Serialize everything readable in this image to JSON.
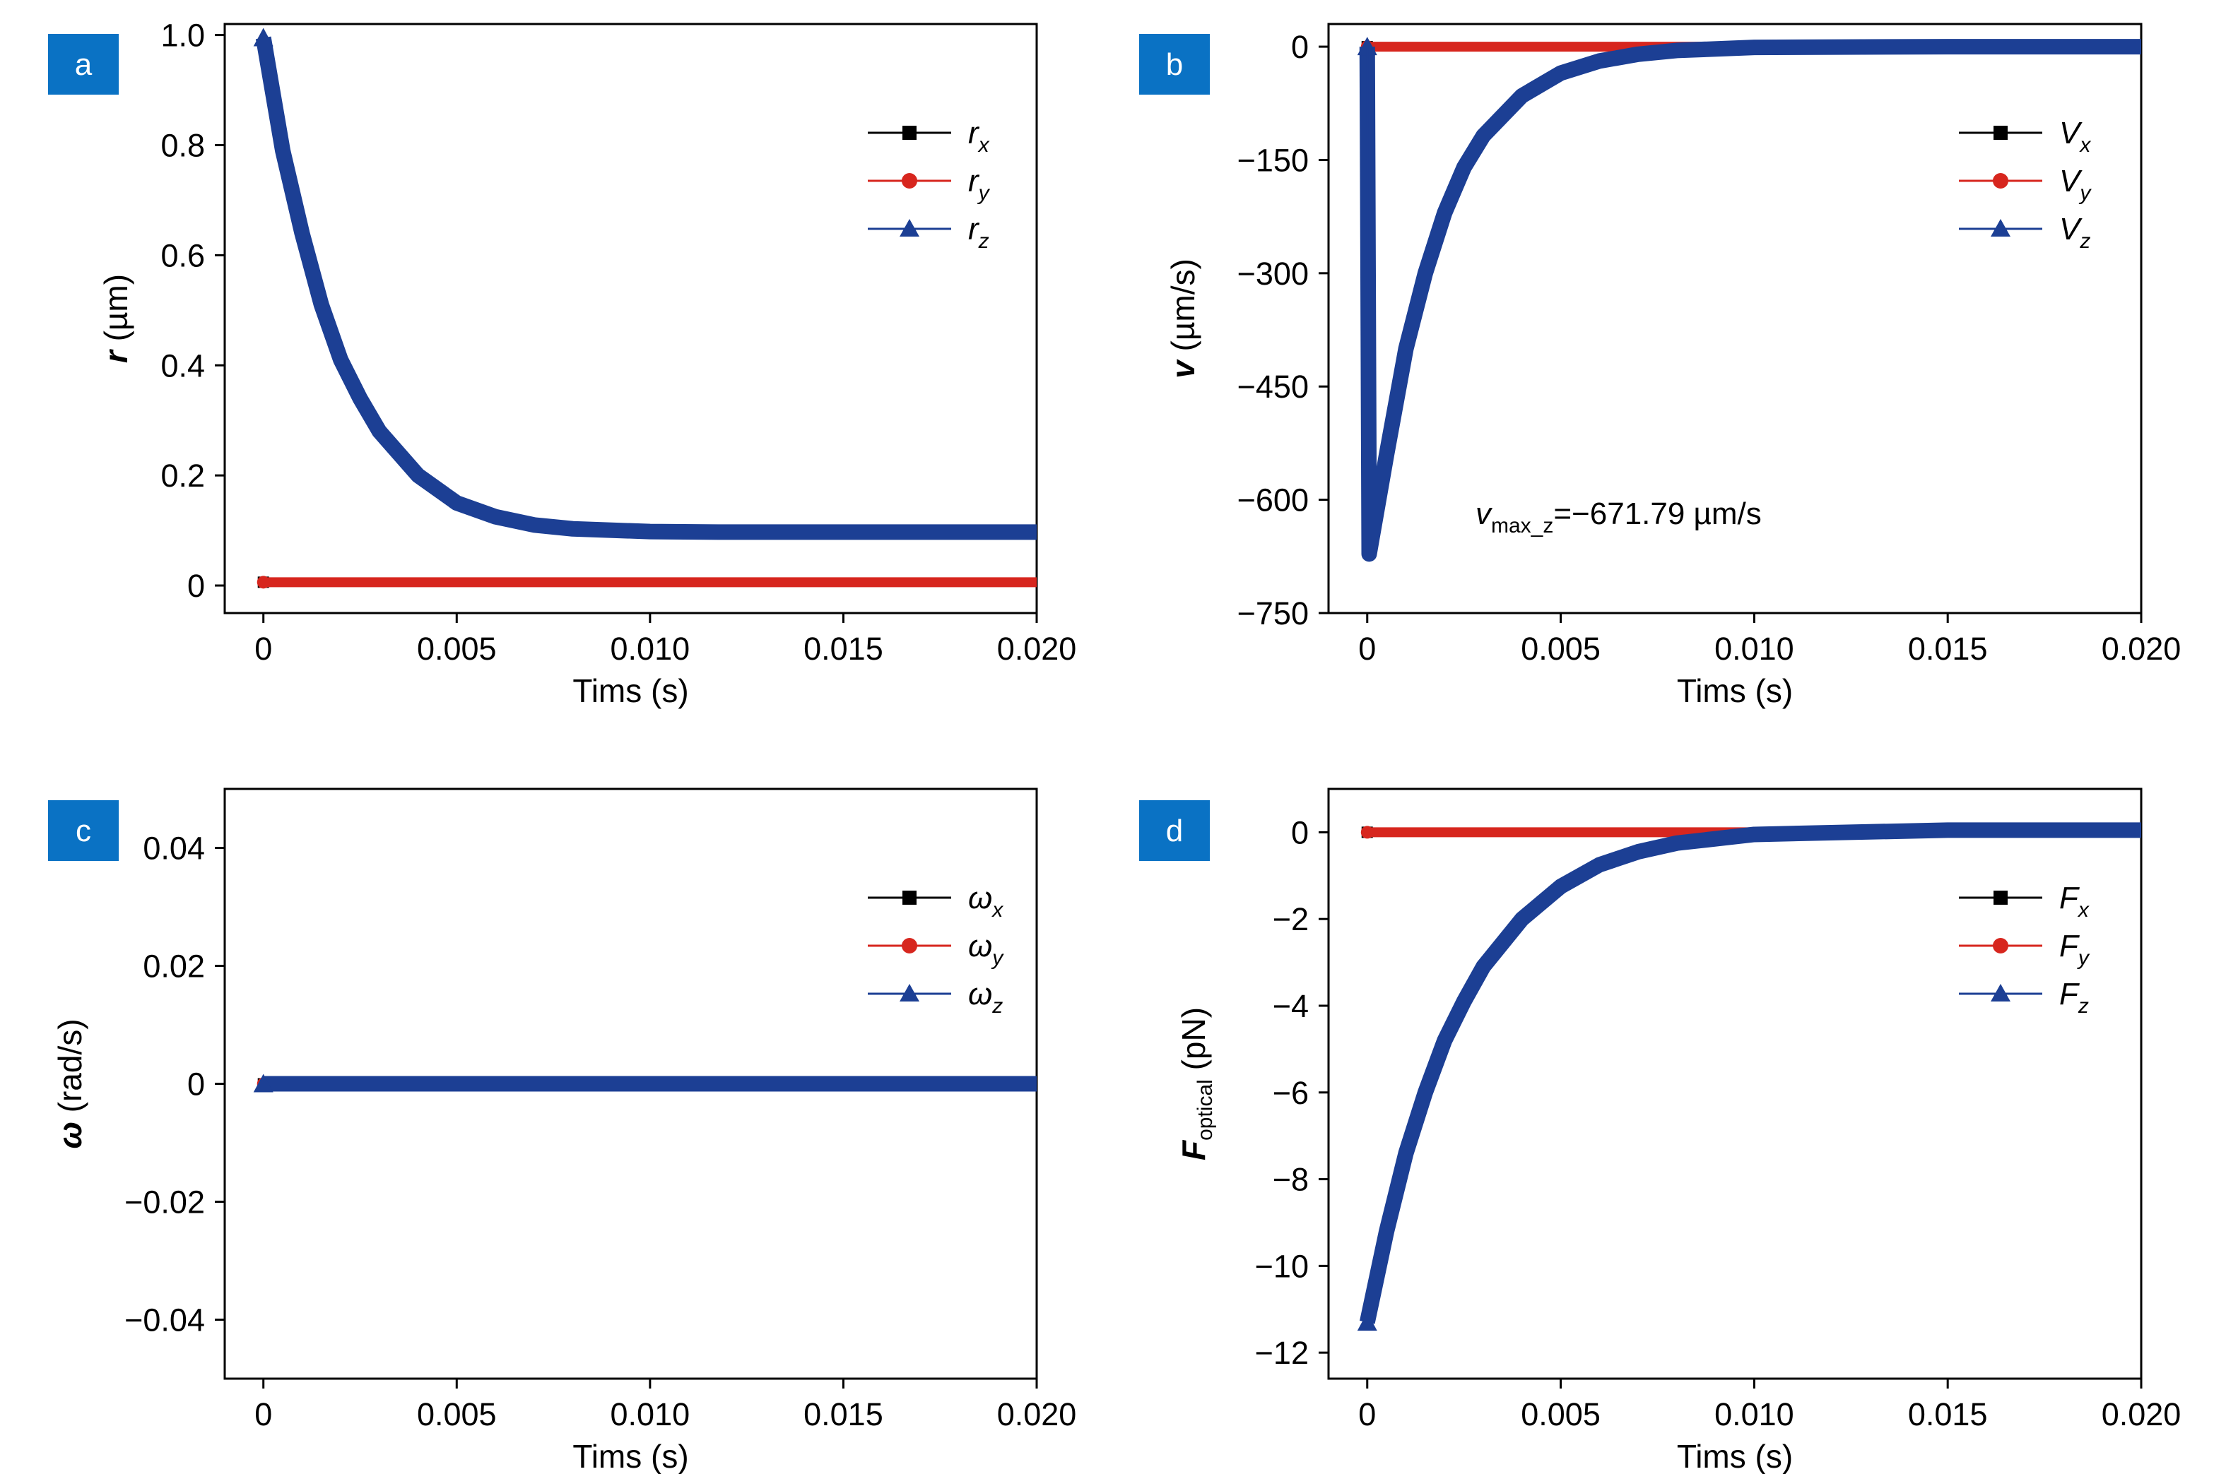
{
  "chart_data": [
    {
      "panel": "a",
      "type": "line",
      "xlabel": "Tims (s)",
      "ylabel": {
        "symbol": "r",
        "unit": " (µm)"
      },
      "xlim": [
        -0.001,
        0.02
      ],
      "ylim": [
        -0.05,
        1.02
      ],
      "xticks": [
        0,
        0.005,
        0.01,
        0.015,
        0.02
      ],
      "xtick_labels": [
        "0",
        "0.005",
        "0.010",
        "0.015",
        "0.020"
      ],
      "yticks": [
        0,
        0.2,
        0.4,
        0.6,
        0.8,
        1.0
      ],
      "ytick_labels": [
        "0",
        "0.2",
        "0.4",
        "0.6",
        "0.8",
        "1.0"
      ],
      "legend": "top-right",
      "series": [
        {
          "name": "rx",
          "label": "r",
          "sub": "x",
          "color": "#000000",
          "marker": "square",
          "x": [
            0,
            0.02
          ],
          "y": [
            0.006,
            0.006
          ]
        },
        {
          "name": "ry",
          "label": "r",
          "sub": "y",
          "color": "#d7261e",
          "marker": "circle",
          "x": [
            0,
            0.02
          ],
          "y": [
            0.006,
            0.006
          ]
        },
        {
          "name": "rz",
          "label": "r",
          "sub": "z",
          "color": "#1c3f94",
          "marker": "triangle",
          "x": [
            0,
            0.0005,
            0.001,
            0.0015,
            0.002,
            0.0025,
            0.003,
            0.004,
            0.005,
            0.006,
            0.007,
            0.008,
            0.01,
            0.012,
            0.015,
            0.02
          ],
          "y": [
            0.995,
            0.79,
            0.64,
            0.51,
            0.41,
            0.34,
            0.28,
            0.2,
            0.15,
            0.125,
            0.11,
            0.103,
            0.098,
            0.097,
            0.097,
            0.097
          ]
        }
      ]
    },
    {
      "panel": "b",
      "type": "line",
      "xlabel": "Tims (s)",
      "ylabel": {
        "symbol": "v",
        "unit": " (µm/s)"
      },
      "xlim": [
        -0.001,
        0.02
      ],
      "ylim": [
        -750,
        30
      ],
      "xticks": [
        0,
        0.005,
        0.01,
        0.015,
        0.02
      ],
      "xtick_labels": [
        "0",
        "0.005",
        "0.010",
        "0.015",
        "0.020"
      ],
      "yticks": [
        0,
        -150,
        -300,
        -450,
        -600,
        -750
      ],
      "ytick_labels": [
        "0",
        "−150",
        "−300",
        "−450",
        "−600",
        "−750"
      ],
      "legend": "top-right",
      "annotation": {
        "var": "v",
        "sub": "max_z",
        "text": "=−671.79 µm/s"
      },
      "series": [
        {
          "name": "Vx",
          "label": "V",
          "sub": "x",
          "color": "#000000",
          "marker": "square",
          "x": [
            0,
            0.02
          ],
          "y": [
            0,
            0
          ]
        },
        {
          "name": "Vy",
          "label": "V",
          "sub": "y",
          "color": "#d7261e",
          "marker": "circle",
          "x": [
            0,
            0.02
          ],
          "y": [
            0,
            0
          ]
        },
        {
          "name": "Vz",
          "label": "V",
          "sub": "z",
          "color": "#1c3f94",
          "marker": "triangle",
          "x": [
            0,
            5e-05,
            0.0005,
            0.001,
            0.0015,
            0.002,
            0.0025,
            0.003,
            0.004,
            0.005,
            0.006,
            0.007,
            0.008,
            0.01,
            0.015,
            0.02
          ],
          "y": [
            0,
            -671.79,
            -540,
            -400,
            -300,
            -220,
            -160,
            -118,
            -65,
            -35,
            -19,
            -10,
            -5,
            -1,
            0,
            0
          ]
        }
      ]
    },
    {
      "panel": "c",
      "type": "line",
      "xlabel": "Tims (s)",
      "ylabel": {
        "symbol": "ω",
        "unit": " (rad/s)"
      },
      "xlim": [
        -0.001,
        0.02
      ],
      "ylim": [
        -0.05,
        0.05
      ],
      "xticks": [
        0,
        0.005,
        0.01,
        0.015,
        0.02
      ],
      "xtick_labels": [
        "0",
        "0.005",
        "0.010",
        "0.015",
        "0.020"
      ],
      "yticks": [
        0.04,
        0.02,
        0,
        -0.02,
        -0.04
      ],
      "ytick_labels": [
        "0.04",
        "0.02",
        "0",
        "−0.02",
        "−0.04"
      ],
      "legend": "top-right",
      "series": [
        {
          "name": "ωx",
          "label": "ω",
          "sub": "x",
          "color": "#000000",
          "marker": "square",
          "x": [
            0,
            0.02
          ],
          "y": [
            0,
            0
          ]
        },
        {
          "name": "ωy",
          "label": "ω",
          "sub": "y",
          "color": "#d7261e",
          "marker": "circle",
          "x": [
            0,
            0.02
          ],
          "y": [
            0,
            0
          ]
        },
        {
          "name": "ωz",
          "label": "ω",
          "sub": "z",
          "color": "#1c3f94",
          "marker": "triangle",
          "x": [
            0,
            0.02
          ],
          "y": [
            0,
            0
          ]
        }
      ]
    },
    {
      "panel": "d",
      "type": "line",
      "xlabel": "Tims (s)",
      "ylabel": {
        "symbol": "F",
        "sub": "optical",
        "unit": " (pN)"
      },
      "xlim": [
        -0.001,
        0.02
      ],
      "ylim": [
        -12.6,
        1.0
      ],
      "xticks": [
        0,
        0.005,
        0.01,
        0.015,
        0.02
      ],
      "xtick_labels": [
        "0",
        "0.005",
        "0.010",
        "0.015",
        "0.020"
      ],
      "yticks": [
        0,
        -2,
        -4,
        -6,
        -8,
        -10,
        -12
      ],
      "ytick_labels": [
        "0",
        "−2",
        "−4",
        "−6",
        "−8",
        "−10",
        "−12"
      ],
      "legend": "top-right",
      "series": [
        {
          "name": "Fx",
          "label": "F",
          "sub": "x",
          "color": "#000000",
          "marker": "square",
          "x": [
            0,
            0.02
          ],
          "y": [
            0,
            0
          ]
        },
        {
          "name": "Fy",
          "label": "F",
          "sub": "y",
          "color": "#d7261e",
          "marker": "circle",
          "x": [
            0,
            0.02
          ],
          "y": [
            0,
            0
          ]
        },
        {
          "name": "Fz",
          "label": "F",
          "sub": "z",
          "color": "#1c3f94",
          "marker": "triangle",
          "x": [
            0,
            0.0005,
            0.001,
            0.0015,
            0.002,
            0.0025,
            0.003,
            0.004,
            0.005,
            0.006,
            0.007,
            0.008,
            0.01,
            0.015,
            0.02
          ],
          "y": [
            -11.3,
            -9.2,
            -7.4,
            -6.0,
            -4.8,
            -3.9,
            -3.1,
            -2.0,
            -1.25,
            -0.75,
            -0.45,
            -0.25,
            -0.05,
            0.05,
            0.05
          ]
        }
      ]
    }
  ]
}
